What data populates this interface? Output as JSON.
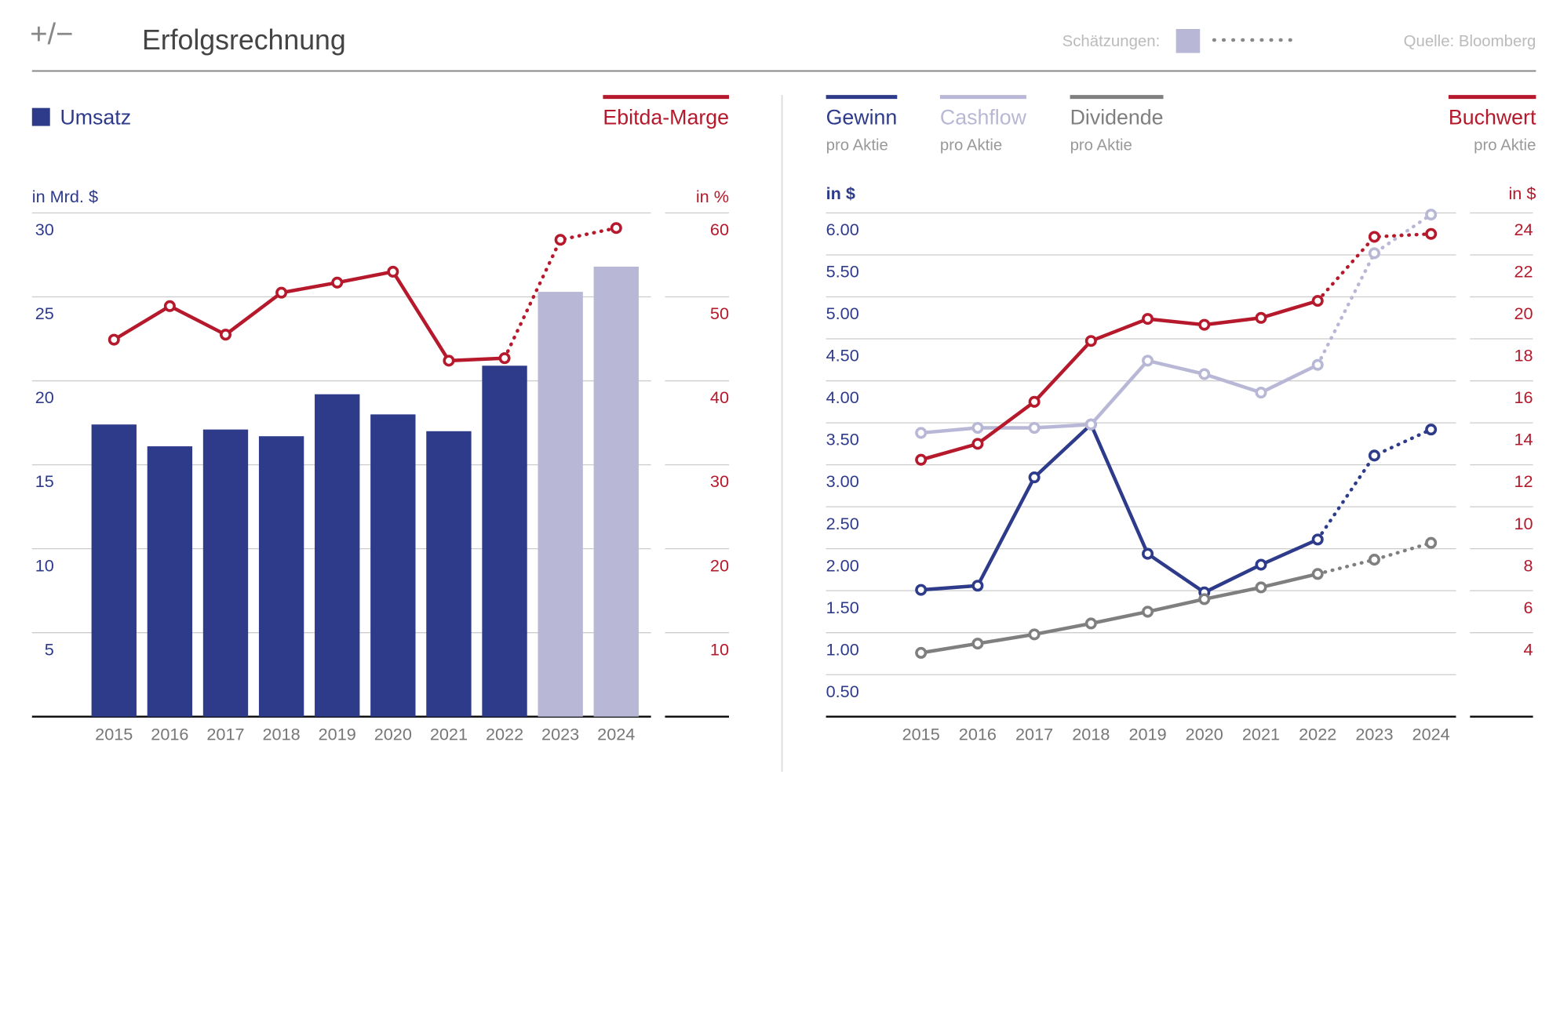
{
  "header": {
    "logo": "+/−",
    "title": "Erfolgsrechnung",
    "source": "Quelle: Bloomberg"
  },
  "estimates": {
    "label": "Schätzungen:",
    "from": "2023",
    "color": "#b8b8d6"
  },
  "chart_data": [
    {
      "type": "bar",
      "categories": [
        "2015",
        "2016",
        "2017",
        "2018",
        "2019",
        "2020",
        "2021",
        "2022",
        "2023",
        "2024"
      ],
      "y_label": "in Mrd. $",
      "y2_label": "in %",
      "ylim": [
        0,
        30
      ],
      "yticks": [
        5,
        10,
        15,
        20,
        25,
        30
      ],
      "y2lim": [
        0,
        60
      ],
      "y2ticks": [
        10,
        20,
        30,
        40,
        50,
        60
      ],
      "grid": true,
      "series": [
        {
          "name": "Umsatz",
          "type": "bar",
          "color": "#2e3b8a",
          "estimate_color": "#b8b8d6",
          "values": [
            17.4,
            16.1,
            17.1,
            16.7,
            19.2,
            18.0,
            17.0,
            20.9,
            25.3,
            26.8
          ]
        },
        {
          "name": "Ebitda-Marge",
          "type": "line",
          "axis": "y2",
          "color": "#b5192b",
          "values": [
            44.9,
            48.9,
            45.5,
            50.5,
            51.7,
            53.0,
            42.4,
            42.7,
            56.8,
            58.2
          ]
        }
      ]
    },
    {
      "type": "line",
      "categories": [
        "2015",
        "2016",
        "2017",
        "2018",
        "2019",
        "2020",
        "2021",
        "2022",
        "2023",
        "2024"
      ],
      "y_label": "in $",
      "y2_label": "in $",
      "ylim": [
        0,
        6
      ],
      "yticks": [
        {
          "value": 0.5,
          "label": "0.50"
        },
        {
          "value": 1,
          "label": "1.00"
        },
        {
          "value": 1.5,
          "label": "1.50"
        },
        {
          "value": 2,
          "label": "2.00"
        },
        {
          "value": 2.5,
          "label": "2.50"
        },
        {
          "value": 3,
          "label": "3.00"
        },
        {
          "value": 3.5,
          "label": "3.50"
        },
        {
          "value": 4,
          "label": "4.00"
        },
        {
          "value": 4.5,
          "label": "4.50"
        },
        {
          "value": 5,
          "label": "5.00"
        },
        {
          "value": 5.5,
          "label": "5.50"
        },
        {
          "value": 6,
          "label": "6.00"
        }
      ],
      "y2lim": [
        0,
        24
      ],
      "y2ticks": [
        4,
        6,
        8,
        10,
        12,
        14,
        16,
        18,
        20,
        22,
        24
      ],
      "grid": true,
      "series": [
        {
          "name": "Gewinn",
          "subtitle": "pro Aktie",
          "color": "#2e3b8a",
          "values": [
            1.51,
            1.56,
            2.85,
            3.48,
            1.94,
            1.48,
            1.81,
            2.11,
            3.11,
            3.42
          ]
        },
        {
          "name": "Cashflow",
          "subtitle": "pro Aktie",
          "color": "#b8b8d6",
          "values": [
            3.38,
            3.44,
            3.44,
            3.48,
            4.24,
            4.08,
            3.86,
            4.19,
            5.52,
            5.98
          ]
        },
        {
          "name": "Dividende",
          "subtitle": "pro Aktie",
          "color": "#7f7f7f",
          "values": [
            0.76,
            0.87,
            0.98,
            1.11,
            1.25,
            1.4,
            1.54,
            1.7,
            1.87,
            2.07
          ]
        },
        {
          "name": "Buchwert",
          "subtitle": "pro Aktie",
          "axis": "y2",
          "color": "#b5192b",
          "values": [
            12.24,
            13.0,
            15.0,
            17.9,
            18.95,
            18.67,
            19.0,
            19.81,
            22.86,
            23.0
          ]
        }
      ]
    }
  ]
}
